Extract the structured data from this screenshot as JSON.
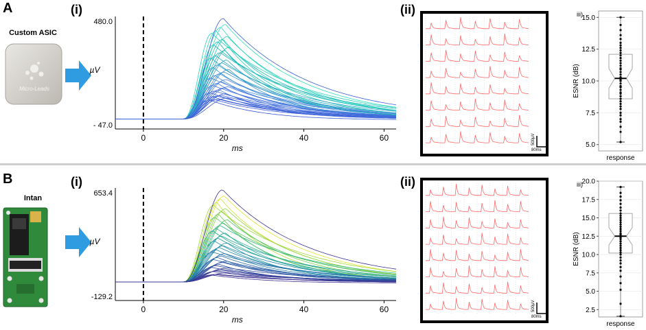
{
  "colors": {
    "arrow": "#2f9be0",
    "trace_red": "#ff6666",
    "box_fill": "#ffffff",
    "box_stroke": "#a8a8a8",
    "median": "#000000",
    "divider": "#cfcfcf"
  },
  "panels": [
    {
      "letter": "A",
      "device": {
        "title": "Custom ASIC",
        "label_text": "Micro-Leads",
        "image_icon": "asic-chip-image"
      },
      "sub_i": "(i)",
      "sub_ii": "(ii)",
      "sub_iii": "iii)",
      "scale_bar": {
        "voltage": "500µV",
        "time": "80ms"
      }
    },
    {
      "letter": "B",
      "device": {
        "title": "Intan",
        "image_icon": "intan-board-image"
      },
      "sub_i": "(i)",
      "sub_ii": "(ii)",
      "sub_iii": "iii)",
      "scale_bar": {
        "voltage": "500µV",
        "time": "80ms"
      }
    }
  ],
  "chart_data": [
    {
      "id": "A-i",
      "type": "line",
      "title": "",
      "xlabel": "ms",
      "ylabel": "µV",
      "xlim": [
        -7,
        63
      ],
      "ylim": [
        -47.0,
        480.0
      ],
      "xticks": [
        0,
        20,
        40,
        60
      ],
      "ytick_labels": [
        "480.0",
        "- 47.0"
      ],
      "stim_marker_x": 0,
      "baseline": 0,
      "onset_ms": 10,
      "series_count": 40,
      "peak_ms_range": [
        16.5,
        21.5
      ],
      "peak_values_range": [
        90,
        470
      ],
      "colormap": [
        "#3a5ad6",
        "#4a7fe0",
        "#2fa0c8",
        "#17c3b2",
        "#31e0c0"
      ]
    },
    {
      "id": "A-iii",
      "type": "box",
      "xlabel": "response",
      "ylabel": "ESNR (dB)",
      "ylim": [
        4.5,
        15.5
      ],
      "yticks": [
        5.0,
        7.5,
        10.0,
        12.5,
        15.0
      ],
      "ytick_labels": [
        "5.0",
        "7.5",
        "10.0",
        "12.5",
        "15.0"
      ],
      "box": {
        "q1": 8.6,
        "median": 10.2,
        "q3": 12.1,
        "whisker_low": 5.2,
        "whisker_high": 15.0
      },
      "points": [
        5.2,
        6.0,
        6.4,
        6.8,
        7.0,
        7.3,
        7.5,
        7.8,
        8.0,
        8.2,
        8.4,
        8.6,
        8.8,
        9.0,
        9.1,
        9.3,
        9.5,
        9.6,
        9.8,
        10.0,
        10.1,
        10.2,
        10.3,
        10.5,
        10.7,
        10.9,
        11.0,
        11.2,
        11.4,
        11.6,
        11.8,
        12.0,
        12.2,
        12.4,
        12.6,
        12.8,
        13.0,
        13.3,
        13.6,
        14.0,
        14.4,
        15.0
      ]
    },
    {
      "id": "B-i",
      "type": "line",
      "title": "",
      "xlabel": "ms",
      "ylabel": "µV",
      "xlim": [
        -7,
        63
      ],
      "ylim": [
        -129.2,
        653.4
      ],
      "xticks": [
        0,
        20,
        40,
        60
      ],
      "ytick_labels": [
        "653.4",
        "-129.2"
      ],
      "stim_marker_x": 0,
      "baseline": 0,
      "onset_ms": 10,
      "series_count": 40,
      "peak_ms_range": [
        17,
        21
      ],
      "peak_values_range": [
        50,
        640
      ],
      "colormap": [
        "#3b2d8f",
        "#2a5ea8",
        "#1f8fa8",
        "#24b38a",
        "#7cd04a",
        "#e3e52a"
      ]
    },
    {
      "id": "B-iii",
      "type": "box",
      "xlabel": "response",
      "ylabel": "ESNR (dB)",
      "ylim": [
        1.5,
        20.0
      ],
      "yticks": [
        2.5,
        5.0,
        7.5,
        10.0,
        12.5,
        15.0,
        17.5,
        20.0
      ],
      "ytick_labels": [
        "2.5",
        "5.0",
        "7.5",
        "10.0",
        "12.5",
        "15.0",
        "17.5",
        "20.0"
      ],
      "box": {
        "q1": 10.2,
        "median": 12.5,
        "q3": 15.6,
        "whisker_low": 1.6,
        "whisker_high": 19.2
      },
      "points": [
        1.6,
        3.3,
        5.2,
        6.1,
        7.0,
        7.8,
        8.3,
        8.8,
        9.2,
        9.6,
        10.0,
        10.3,
        10.6,
        10.9,
        11.2,
        11.5,
        11.8,
        12.1,
        12.3,
        12.5,
        12.7,
        12.9,
        13.2,
        13.5,
        13.8,
        14.1,
        14.4,
        14.7,
        15.0,
        15.3,
        15.6,
        16.0,
        16.4,
        16.9,
        17.4,
        17.9,
        18.4,
        19.2
      ]
    }
  ]
}
